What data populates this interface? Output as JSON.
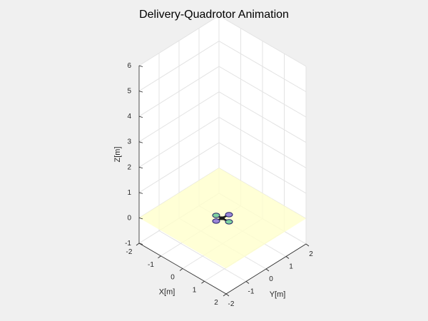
{
  "chart_data": {
    "type": "scatter",
    "title": "Delivery-Quadrotor Animation",
    "xlabel": "X[m]",
    "ylabel": "Y[m]",
    "zlabel": "Z[m]",
    "xlim": [
      -2,
      2
    ],
    "ylim": [
      -2,
      2
    ],
    "zlim": [
      -1,
      6
    ],
    "x_ticks": [
      "-2",
      "-1",
      "0",
      "1",
      "2"
    ],
    "y_ticks": [
      "-2",
      "-1",
      "0",
      "1",
      "2"
    ],
    "z_ticks": [
      "-1",
      "0",
      "1",
      "2",
      "3",
      "4",
      "5",
      "6"
    ],
    "grid": true,
    "ground_plane_z": 0,
    "ground_plane_color": "#ffffcc",
    "quadrotor": {
      "position": [
        0,
        0,
        0
      ],
      "arm_color": "#1a1a1a",
      "rotor_colors": [
        "#7fd3a0",
        "#9b86d8",
        "#7fd3a0",
        "#9b86d8"
      ]
    }
  }
}
